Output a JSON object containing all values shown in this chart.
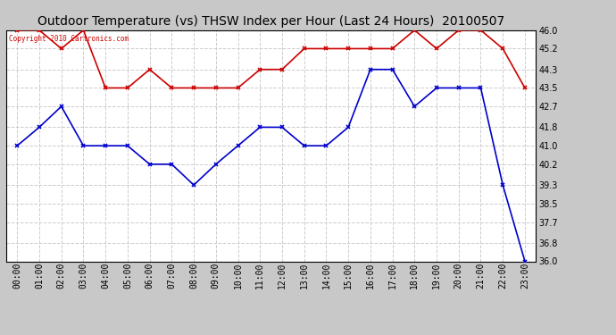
{
  "title": "Outdoor Temperature (vs) THSW Index per Hour (Last 24 Hours)  20100507",
  "copyright": "Copyright 2010 Cartronics.com",
  "hours": [
    "00:00",
    "01:00",
    "02:00",
    "03:00",
    "04:00",
    "05:00",
    "06:00",
    "07:00",
    "08:00",
    "09:00",
    "10:00",
    "11:00",
    "12:00",
    "13:00",
    "14:00",
    "15:00",
    "16:00",
    "17:00",
    "18:00",
    "19:00",
    "20:00",
    "21:00",
    "22:00",
    "23:00"
  ],
  "blue_data": [
    41.0,
    41.8,
    42.7,
    41.0,
    41.0,
    41.0,
    40.2,
    40.2,
    39.3,
    40.2,
    41.0,
    41.8,
    41.8,
    41.0,
    41.0,
    41.8,
    44.3,
    44.3,
    42.7,
    43.5,
    43.5,
    43.5,
    39.3,
    36.0
  ],
  "red_data": [
    46.0,
    46.0,
    45.2,
    46.0,
    43.5,
    43.5,
    44.3,
    43.5,
    43.5,
    43.5,
    43.5,
    44.3,
    44.3,
    45.2,
    45.2,
    45.2,
    45.2,
    45.2,
    46.0,
    45.2,
    46.0,
    46.0,
    45.2,
    43.5
  ],
  "ylim": [
    36.0,
    46.0
  ],
  "yticks": [
    36.0,
    36.8,
    37.7,
    38.5,
    39.3,
    40.2,
    41.0,
    41.8,
    42.7,
    43.5,
    44.3,
    45.2,
    46.0
  ],
  "figure_bg": "#c8c8c8",
  "plot_bg": "#ffffff",
  "grid_color": "#cccccc",
  "blue_color": "#0000cc",
  "red_color": "#cc0000",
  "title_fontsize": 10,
  "tick_fontsize": 7,
  "copyright_fontsize": 5.5
}
